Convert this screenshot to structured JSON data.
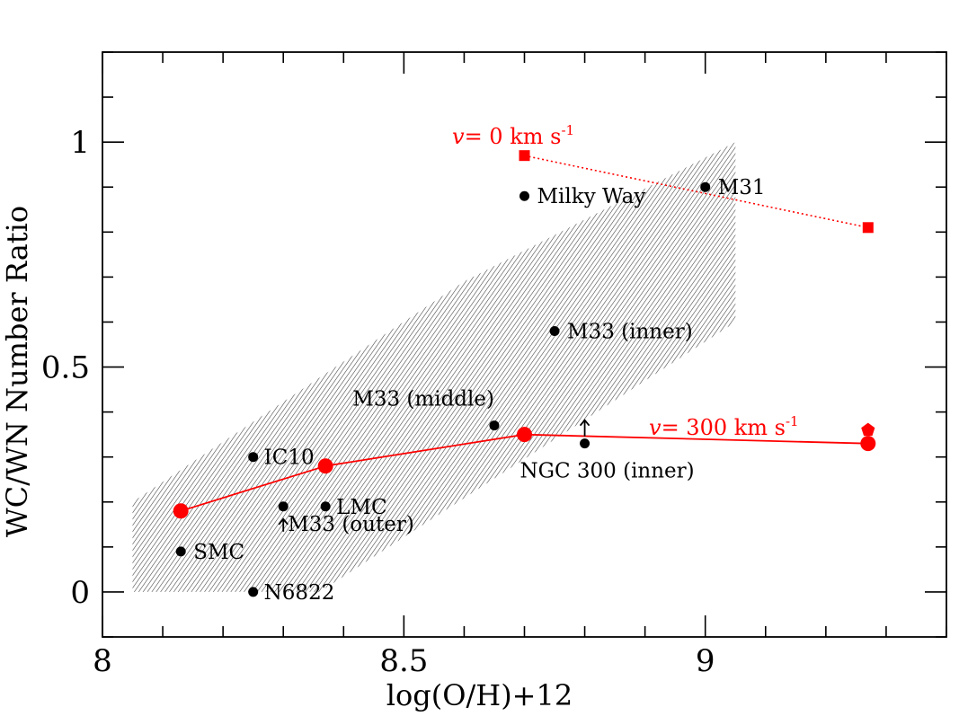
{
  "chart_data": {
    "type": "scatter",
    "xlabel": "log(O/H)+12",
    "ylabel": "WC/WN Number Ratio",
    "xlim": [
      8.0,
      9.4
    ],
    "ylim": [
      -0.1,
      1.2
    ],
    "x_ticks": [
      {
        "value": 8.0,
        "label": "8"
      },
      {
        "value": 8.5,
        "label": "8.5"
      },
      {
        "value": 9.0,
        "label": "9"
      }
    ],
    "y_ticks": [
      {
        "value": 0.0,
        "label": "0"
      },
      {
        "value": 0.5,
        "label": "0.5"
      },
      {
        "value": 1.0,
        "label": "1"
      }
    ],
    "x_minor_step": 0.1,
    "y_minor_step": 0.1,
    "grid": false,
    "observed_points": [
      {
        "name": "Milky Way",
        "x": 8.7,
        "y": 0.88
      },
      {
        "name": "M31",
        "x": 9.0,
        "y": 0.9
      },
      {
        "name": "M33 (inner)",
        "x": 8.75,
        "y": 0.58
      },
      {
        "name": "M33 (middle)",
        "x": 8.65,
        "y": 0.37
      },
      {
        "name": "NGC 300 (inner)",
        "x": 8.8,
        "y": 0.33,
        "lower_limit": true
      },
      {
        "name": "IC10",
        "x": 8.25,
        "y": 0.3
      },
      {
        "name": "LMC",
        "x": 8.37,
        "y": 0.19
      },
      {
        "name": "M33 (outer)",
        "x": 8.3,
        "y": 0.19,
        "lower_limit": true
      },
      {
        "name": "SMC",
        "x": 8.13,
        "y": 0.09
      },
      {
        "name": "N6822",
        "x": 8.25,
        "y": 0.0
      }
    ],
    "series": [
      {
        "name": "v= 0 km s-1",
        "label_parts": {
          "var": "v",
          "eq": "= 0 km s",
          "sup": "-1"
        },
        "color": "#ff0000",
        "line_style": "dotted",
        "marker": "square",
        "points": [
          {
            "x": 8.7,
            "y": 0.97
          },
          {
            "x": 9.27,
            "y": 0.81
          }
        ]
      },
      {
        "name": "v= 300 km s-1",
        "label_parts": {
          "var": "v",
          "eq": "= 300 km s",
          "sup": "-1"
        },
        "color": "#ff0000",
        "line_style": "solid",
        "marker": "circle",
        "points": [
          {
            "x": 8.13,
            "y": 0.18
          },
          {
            "x": 8.37,
            "y": 0.28
          },
          {
            "x": 8.7,
            "y": 0.35
          },
          {
            "x": 9.27,
            "y": 0.33
          }
        ],
        "extra_marker": {
          "shape": "pentagon",
          "x": 9.27,
          "y": 0.36
        }
      }
    ],
    "shaded_band": {
      "pattern": "hatched",
      "color": "#555555",
      "vertices": [
        {
          "x": 8.05,
          "y": 0.0
        },
        {
          "x": 8.36,
          "y": 0.0
        },
        {
          "x": 9.05,
          "y": 0.6
        },
        {
          "x": 9.05,
          "y": 1.0
        },
        {
          "x": 8.6,
          "y": 0.69
        },
        {
          "x": 8.05,
          "y": 0.2
        }
      ]
    },
    "colors": {
      "model": "#ff0000",
      "observed": "#000000",
      "band": "#555555"
    }
  }
}
